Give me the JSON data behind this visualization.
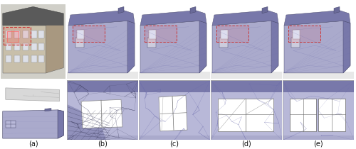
{
  "fig_width": 5.0,
  "fig_height": 2.1,
  "dpi": 100,
  "background_color": "#ffffff",
  "panel_labels": [
    "(a)",
    "(b)",
    "(c)",
    "(d)",
    "(e)"
  ],
  "label_fontsize": 7.0,
  "label_color": "#111111",
  "purple_main": "#9090bb",
  "purple_dark": "#6a6a99",
  "purple_mid": "#7878aa",
  "purple_light": "#aaaacc",
  "purple_bg": "#b8b8d8",
  "red_color": "#cc3333",
  "red_fill": "#ee666633",
  "white_color": "#ffffff",
  "mesh_line": "#6666aa",
  "mesh_line_dark": "#444466",
  "photo_gray": "#888888",
  "outline": "#555577"
}
